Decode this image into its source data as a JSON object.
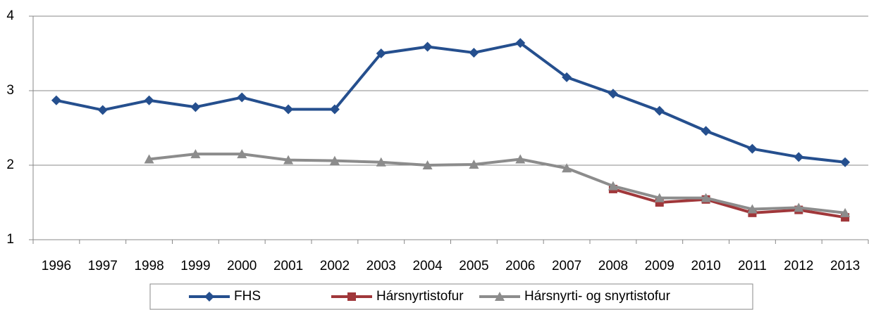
{
  "chart_data": {
    "type": "line",
    "categories": [
      "1996",
      "1997",
      "1998",
      "1999",
      "2000",
      "2001",
      "2002",
      "2003",
      "2004",
      "2005",
      "2006",
      "2007",
      "2008",
      "2009",
      "2010",
      "2011",
      "2012",
      "2013"
    ],
    "series": [
      {
        "name": "FHS",
        "color": "#254f8e",
        "marker": "diamond",
        "values": [
          2.87,
          2.74,
          2.87,
          2.78,
          2.91,
          2.75,
          2.75,
          3.5,
          3.59,
          3.51,
          3.64,
          3.18,
          2.96,
          2.73,
          2.46,
          2.22,
          2.11,
          2.04
        ]
      },
      {
        "name": "Hársnyrtistofur",
        "color": "#a0373a",
        "marker": "square",
        "values": [
          null,
          null,
          null,
          null,
          null,
          null,
          null,
          null,
          null,
          null,
          null,
          null,
          1.68,
          1.5,
          1.54,
          1.36,
          1.4,
          1.3
        ]
      },
      {
        "name": "Hársnyrti- og snyrtistofur",
        "color": "#8c8c8c",
        "marker": "triangle",
        "values": [
          null,
          null,
          2.08,
          2.15,
          2.15,
          2.07,
          2.06,
          2.04,
          2.0,
          2.01,
          2.08,
          1.96,
          1.72,
          1.56,
          1.56,
          1.41,
          1.43,
          1.36
        ]
      }
    ],
    "ylim": [
      1,
      4
    ],
    "yticks": [
      1,
      2,
      3,
      4
    ],
    "grid": true,
    "legend": "bottom"
  }
}
